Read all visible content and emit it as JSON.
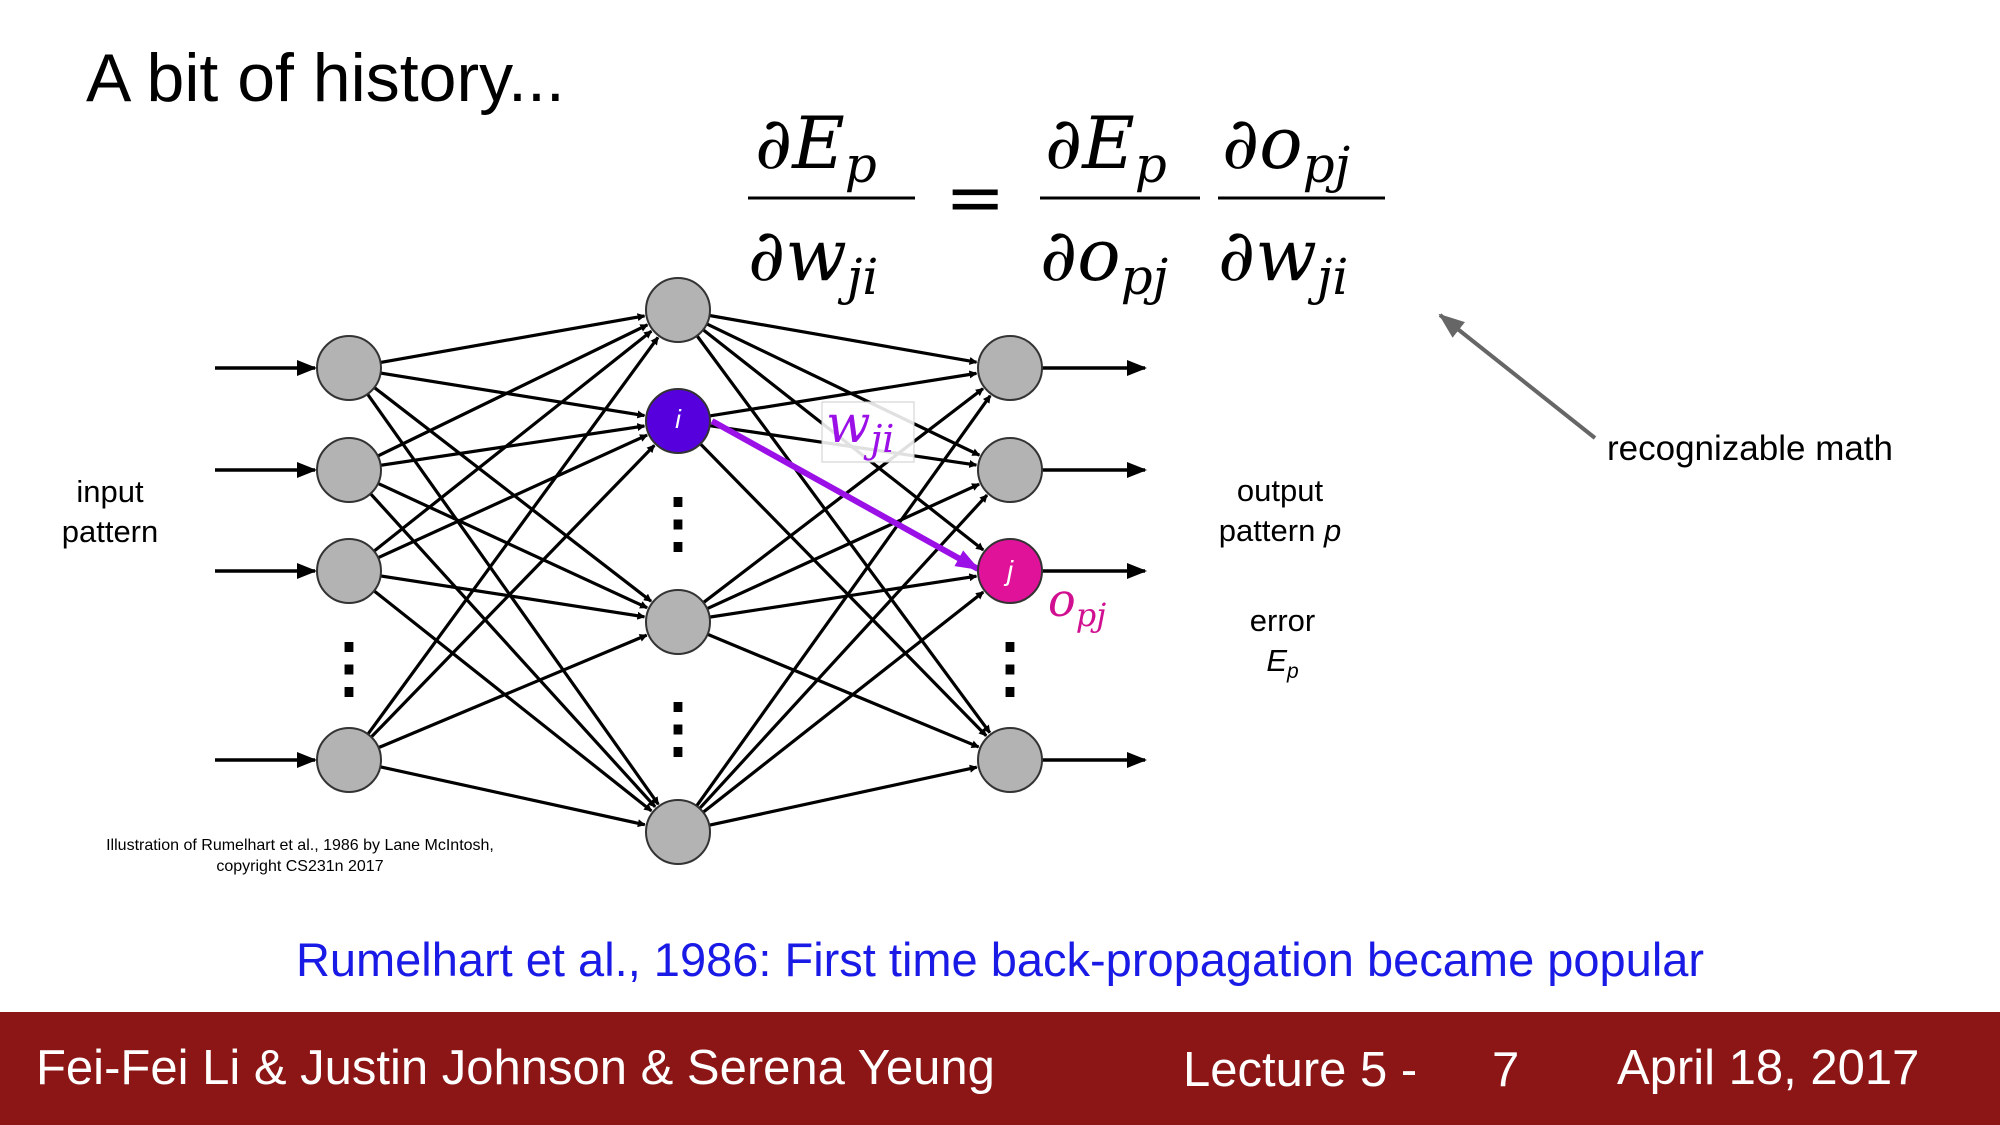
{
  "slide": {
    "title": "A bit of history...",
    "footnote": "Rumelhart et al., 1986: First time back-propagation became popular"
  },
  "equation": {
    "lhs_num": "∂E",
    "lhs_num_sub": "p",
    "lhs_den": "∂w",
    "lhs_den_sub": "ji",
    "equals": "=",
    "r1_num": "∂E",
    "r1_num_sub": "p",
    "r1_den": "∂o",
    "r1_den_sub": "pj",
    "r2_num": "∂o",
    "r2_num_sub": "pj",
    "r2_den": "∂w",
    "r2_den_sub": "ji"
  },
  "annotation": {
    "label": "recognizable math"
  },
  "network": {
    "input_label_line1": "input",
    "input_label_line2": "pattern",
    "output_label_line1": "output",
    "output_label_line2": "pattern",
    "output_label_var": "p",
    "error_label": "error",
    "error_var": "E",
    "error_var_sub": "p",
    "hidden_node_label": "i",
    "output_node_label": "j",
    "weight_label": "w",
    "weight_label_sub": "ji",
    "output_value_label": "o",
    "output_value_sub": "pj",
    "ellipsis": "⋮",
    "colors": {
      "node_fill": "#b3b3b3",
      "node_i": "#5500dd",
      "node_j": "#e0129a",
      "weight_arrow": "#9b10e6"
    }
  },
  "credit": {
    "line1": "Illustration of Rumelhart et al., 1986 by Lane McIntosh,",
    "line2": "copyright CS231n 2017"
  },
  "footer": {
    "authors": "Fei-Fei Li & Justin Johnson & Serena Yeung",
    "lecture": "Lecture 5 -",
    "page": "7",
    "date": "April 18, 2017",
    "background_color": "#8c1515"
  }
}
